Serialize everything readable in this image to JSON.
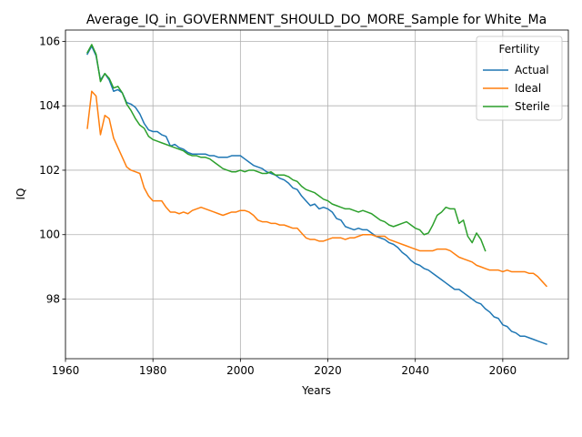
{
  "chart_data": {
    "type": "line",
    "title": "Average_IQ_in_GOVERNMENT_SHOULD_DO_MORE_Sample for White_Ma",
    "xlabel": "Years",
    "ylabel": "IQ",
    "xlim": [
      1960,
      2075
    ],
    "ylim": [
      96.15,
      106.35
    ],
    "xticks": [
      1960,
      1980,
      2000,
      2020,
      2040,
      2060
    ],
    "yticks": [
      98,
      100,
      102,
      104,
      106
    ],
    "grid": true,
    "legend": {
      "title": "Fertility",
      "placement": "top-right"
    },
    "series": [
      {
        "name": "Actual",
        "color": "#1f77b4",
        "x": [
          1965,
          1966,
          1967,
          1968,
          1969,
          1970,
          1971,
          1972,
          1973,
          1974,
          1975,
          1976,
          1977,
          1978,
          1979,
          1980,
          1981,
          1982,
          1983,
          1984,
          1985,
          1986,
          1987,
          1988,
          1989,
          1990,
          1991,
          1992,
          1993,
          1994,
          1995,
          1996,
          1997,
          1998,
          1999,
          2000,
          2001,
          2002,
          2003,
          2004,
          2005,
          2006,
          2007,
          2008,
          2009,
          2010,
          2011,
          2012,
          2013,
          2014,
          2015,
          2016,
          2017,
          2018,
          2019,
          2020,
          2021,
          2022,
          2023,
          2024,
          2025,
          2026,
          2027,
          2028,
          2029,
          2030,
          2031,
          2032,
          2033,
          2034,
          2035,
          2036,
          2037,
          2038,
          2039,
          2040,
          2041,
          2042,
          2043,
          2044,
          2045,
          2046,
          2047,
          2048,
          2049,
          2050,
          2051,
          2052,
          2053,
          2054,
          2055,
          2056,
          2057,
          2058,
          2059,
          2060,
          2061,
          2062,
          2063,
          2064,
          2065,
          2066,
          2067,
          2068,
          2069,
          2070
        ],
        "y": [
          105.6,
          105.85,
          105.55,
          104.8,
          105.0,
          104.8,
          104.45,
          104.5,
          104.4,
          104.1,
          104.05,
          103.95,
          103.75,
          103.45,
          103.25,
          103.2,
          103.2,
          103.1,
          103.05,
          102.75,
          102.8,
          102.7,
          102.65,
          102.55,
          102.5,
          102.5,
          102.5,
          102.5,
          102.45,
          102.45,
          102.4,
          102.4,
          102.4,
          102.45,
          102.45,
          102.45,
          102.35,
          102.25,
          102.15,
          102.1,
          102.05,
          101.95,
          101.9,
          101.85,
          101.75,
          101.7,
          101.6,
          101.45,
          101.4,
          101.2,
          101.05,
          100.9,
          100.95,
          100.8,
          100.85,
          100.8,
          100.7,
          100.5,
          100.45,
          100.25,
          100.2,
          100.15,
          100.2,
          100.15,
          100.15,
          100.05,
          99.95,
          99.9,
          99.85,
          99.75,
          99.7,
          99.6,
          99.45,
          99.35,
          99.2,
          99.1,
          99.05,
          98.95,
          98.9,
          98.8,
          98.7,
          98.6,
          98.5,
          98.4,
          98.3,
          98.3,
          98.2,
          98.1,
          98.0,
          97.9,
          97.85,
          97.7,
          97.6,
          97.45,
          97.4,
          97.2,
          97.15,
          97.0,
          96.95,
          96.85,
          96.85,
          96.8,
          96.75,
          96.7,
          96.65,
          96.6
        ]
      },
      {
        "name": "Ideal",
        "color": "#ff7f0e",
        "x": [
          1965,
          1966,
          1967,
          1968,
          1969,
          1970,
          1971,
          1972,
          1973,
          1974,
          1975,
          1976,
          1977,
          1978,
          1979,
          1980,
          1981,
          1982,
          1983,
          1984,
          1985,
          1986,
          1987,
          1988,
          1989,
          1990,
          1991,
          1992,
          1993,
          1994,
          1995,
          1996,
          1997,
          1998,
          1999,
          2000,
          2001,
          2002,
          2003,
          2004,
          2005,
          2006,
          2007,
          2008,
          2009,
          2010,
          2011,
          2012,
          2013,
          2014,
          2015,
          2016,
          2017,
          2018,
          2019,
          2020,
          2021,
          2022,
          2023,
          2024,
          2025,
          2026,
          2027,
          2028,
          2029,
          2030,
          2031,
          2032,
          2033,
          2034,
          2035,
          2036,
          2037,
          2038,
          2039,
          2040,
          2041,
          2042,
          2043,
          2044,
          2045,
          2046,
          2047,
          2048,
          2049,
          2050,
          2051,
          2052,
          2053,
          2054,
          2055,
          2056,
          2057,
          2058,
          2059,
          2060,
          2061,
          2062,
          2063,
          2064,
          2065,
          2066,
          2067,
          2068,
          2069,
          2070
        ],
        "y": [
          103.3,
          104.45,
          104.3,
          103.1,
          103.7,
          103.6,
          103.0,
          102.7,
          102.4,
          102.1,
          102.0,
          101.95,
          101.9,
          101.45,
          101.2,
          101.05,
          101.05,
          101.05,
          100.85,
          100.7,
          100.7,
          100.65,
          100.7,
          100.65,
          100.75,
          100.8,
          100.85,
          100.8,
          100.75,
          100.7,
          100.65,
          100.6,
          100.65,
          100.7,
          100.7,
          100.75,
          100.75,
          100.7,
          100.6,
          100.45,
          100.4,
          100.4,
          100.35,
          100.35,
          100.3,
          100.3,
          100.25,
          100.2,
          100.2,
          100.05,
          99.9,
          99.85,
          99.85,
          99.8,
          99.8,
          99.85,
          99.9,
          99.9,
          99.9,
          99.85,
          99.9,
          99.9,
          99.95,
          100.0,
          100.0,
          100.0,
          99.95,
          99.95,
          99.95,
          99.85,
          99.8,
          99.75,
          99.7,
          99.65,
          99.6,
          99.55,
          99.5,
          99.5,
          99.5,
          99.5,
          99.55,
          99.55,
          99.55,
          99.5,
          99.4,
          99.3,
          99.25,
          99.2,
          99.15,
          99.05,
          99.0,
          98.95,
          98.9,
          98.9,
          98.9,
          98.85,
          98.9,
          98.85,
          98.85,
          98.85,
          98.85,
          98.8,
          98.8,
          98.7,
          98.55,
          98.4
        ]
      },
      {
        "name": "Sterile",
        "color": "#2ca02c",
        "x": [
          1965,
          1966,
          1967,
          1968,
          1969,
          1970,
          1971,
          1972,
          1973,
          1974,
          1975,
          1976,
          1977,
          1978,
          1979,
          1980,
          1981,
          1982,
          1983,
          1984,
          1985,
          1986,
          1987,
          1988,
          1989,
          1990,
          1991,
          1992,
          1993,
          1994,
          1995,
          1996,
          1997,
          1998,
          1999,
          2000,
          2001,
          2002,
          2003,
          2004,
          2005,
          2006,
          2007,
          2008,
          2009,
          2010,
          2011,
          2012,
          2013,
          2014,
          2015,
          2016,
          2017,
          2018,
          2019,
          2020,
          2021,
          2022,
          2023,
          2024,
          2025,
          2026,
          2027,
          2028,
          2029,
          2030,
          2031,
          2032,
          2033,
          2034,
          2035,
          2036,
          2037,
          2038,
          2039,
          2040,
          2041,
          2042,
          2043,
          2044,
          2045,
          2046,
          2047,
          2048,
          2049,
          2050,
          2051,
          2052,
          2053,
          2054,
          2055,
          2056
        ],
        "y": [
          105.65,
          105.9,
          105.6,
          104.75,
          105.0,
          104.85,
          104.55,
          104.6,
          104.4,
          104.05,
          103.85,
          103.6,
          103.4,
          103.3,
          103.05,
          102.95,
          102.9,
          102.85,
          102.8,
          102.75,
          102.7,
          102.65,
          102.6,
          102.5,
          102.45,
          102.45,
          102.4,
          102.4,
          102.35,
          102.25,
          102.15,
          102.05,
          102.0,
          101.95,
          101.95,
          102.0,
          101.95,
          102.0,
          102.0,
          101.95,
          101.9,
          101.9,
          101.95,
          101.85,
          101.85,
          101.85,
          101.8,
          101.7,
          101.65,
          101.5,
          101.4,
          101.35,
          101.3,
          101.2,
          101.1,
          101.05,
          100.95,
          100.9,
          100.85,
          100.8,
          100.8,
          100.75,
          100.7,
          100.75,
          100.7,
          100.65,
          100.55,
          100.45,
          100.4,
          100.3,
          100.25,
          100.3,
          100.35,
          100.4,
          100.3,
          100.2,
          100.15,
          100.0,
          100.05,
          100.3,
          100.6,
          100.7,
          100.85,
          100.8,
          100.8,
          100.35,
          100.45,
          99.95,
          99.75,
          100.05,
          99.85,
          99.5
        ]
      }
    ]
  }
}
